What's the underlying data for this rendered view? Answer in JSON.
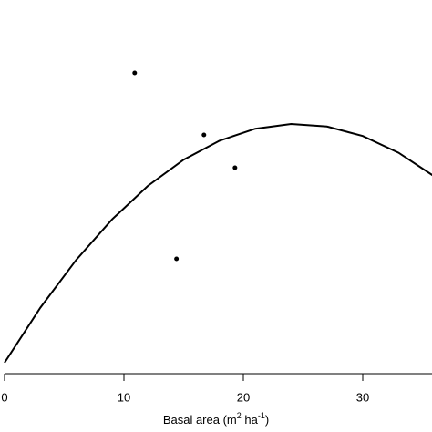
{
  "chart_data": {
    "type": "scatter",
    "x_label_parts": [
      "Basal area (m",
      "2",
      " ha",
      "-1",
      ")"
    ],
    "points": {
      "x": [
        10.9,
        16.7,
        19.3,
        14.4
      ],
      "values": [
        8.25,
        6.55,
        5.65,
        3.15
      ],
      "color": "#000000"
    },
    "curve": {
      "x": [
        0,
        3,
        6,
        9,
        12,
        15,
        18,
        21,
        24,
        27,
        30,
        33,
        36
      ],
      "values": [
        0.3,
        1.81,
        3.12,
        4.23,
        5.15,
        5.87,
        6.39,
        6.72,
        6.85,
        6.78,
        6.52,
        6.06,
        5.41
      ],
      "color": "#000000"
    },
    "xlim": [
      -0.38,
      35.8
    ],
    "xticks": [
      0,
      10,
      20,
      30
    ],
    "ylim": [
      0,
      10
    ]
  }
}
